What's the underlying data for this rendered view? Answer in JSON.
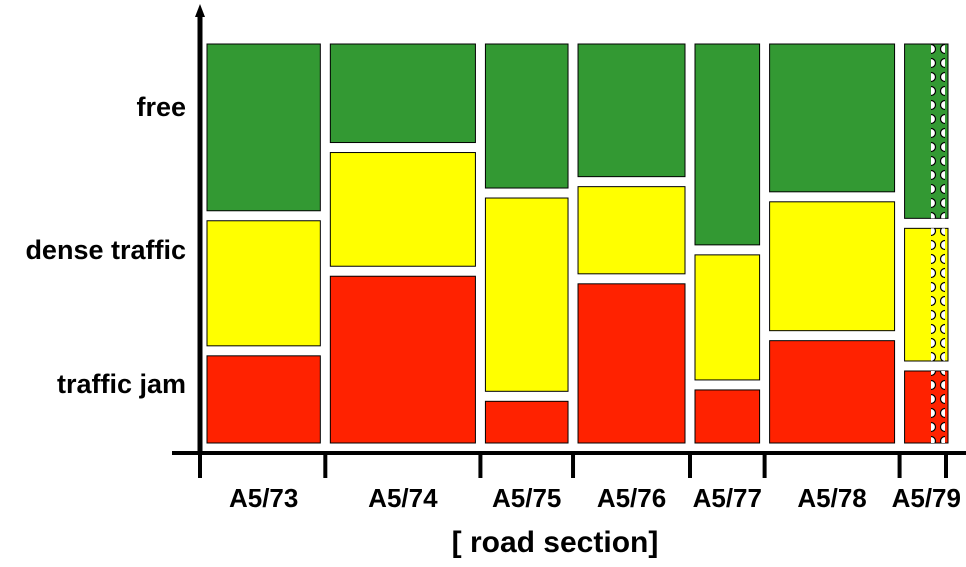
{
  "chart_data": {
    "type": "bar",
    "subtype": "marimekko",
    "xlabel": "[ road section]",
    "ylabel": "",
    "title": "",
    "categories": [
      "A5/73",
      "A5/74",
      "A5/75",
      "A5/76",
      "A5/77",
      "A5/78",
      "A5/79"
    ],
    "category_widths": [
      0.107,
      0.137,
      0.078,
      0.101,
      0.061,
      0.118,
      0.041
    ],
    "levels": [
      "traffic jam",
      "dense traffic",
      "free"
    ],
    "series": [
      {
        "name": "traffic jam",
        "color": "#ff2200",
        "values": [
          0.23,
          0.44,
          0.11,
          0.42,
          0.14,
          0.27,
          0.19
        ]
      },
      {
        "name": "dense traffic",
        "color": "#ffff00",
        "values": [
          0.33,
          0.3,
          0.51,
          0.23,
          0.33,
          0.34,
          0.35
        ]
      },
      {
        "name": "free",
        "color": "#339933",
        "values": [
          0.44,
          0.26,
          0.38,
          0.35,
          0.53,
          0.39,
          0.46
        ]
      }
    ],
    "hatched_categories": [
      "A5/79"
    ],
    "grid": false,
    "legend": "none"
  }
}
